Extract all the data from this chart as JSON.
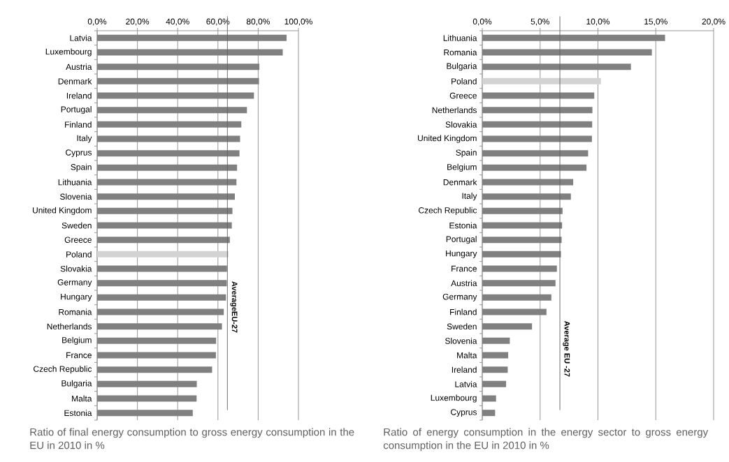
{
  "chart_data": [
    {
      "type": "bar",
      "orientation": "horizontal",
      "grid": "x",
      "categories": [
        "Latvia",
        "Luxembourg",
        "Austria",
        "Denmark",
        "Ireland",
        "Portugal",
        "Finland",
        "Italy",
        "Cyprus",
        "Spain",
        "Lithuania",
        "Slovenia",
        "United Kingdom",
        "Sweden",
        "Greece",
        "Poland",
        "Slovakia",
        "Germany",
        "Hungary",
        "Romania",
        "Netherlands",
        "Belgium",
        "France",
        "Czech Republic",
        "Bulgaria",
        "Malta",
        "Estonia"
      ],
      "values": [
        94.1,
        92.2,
        80.6,
        80.4,
        77.9,
        74.4,
        71.6,
        71.0,
        70.7,
        69.5,
        69.2,
        68.4,
        67.2,
        66.9,
        65.9,
        65.2,
        64.5,
        64.4,
        64.0,
        62.9,
        62.0,
        59.1,
        59.0,
        57.1,
        49.5,
        49.4,
        47.5
      ],
      "colors": [
        "#808080",
        "#808080",
        "#808080",
        "#808080",
        "#808080",
        "#808080",
        "#808080",
        "#808080",
        "#808080",
        "#808080",
        "#808080",
        "#808080",
        "#808080",
        "#808080",
        "#808080",
        "#d3d3d3",
        "#808080",
        "#808080",
        "#808080",
        "#808080",
        "#808080",
        "#808080",
        "#808080",
        "#808080",
        "#808080",
        "#808080",
        "#808080"
      ],
      "xlim": [
        0,
        100
      ],
      "xticks": [
        {
          "value": 0,
          "label": "0,0%"
        },
        {
          "value": 20,
          "label": "20,0%"
        },
        {
          "value": 40,
          "label": "40,0%"
        },
        {
          "value": 60,
          "label": "60,0%"
        },
        {
          "value": 80,
          "label": "80,0%"
        },
        {
          "value": 100,
          "label": "100,0%"
        }
      ],
      "ref_lines": [
        {
          "axis": "x",
          "value": 64.7,
          "label": "AverageEU-27",
          "color": "#606060"
        }
      ],
      "annotations": [
        "Ratio of final energy consumption to gross energy consumption in the EU in 2010 in %"
      ]
    },
    {
      "type": "bar",
      "orientation": "horizontal",
      "grid": "x",
      "categories": [
        "Lithuania",
        "Romania",
        "Bulgaria",
        "Poland",
        "Greece",
        "Netherlands",
        "Slovakia",
        "United Kingdom",
        "Spain",
        "Belgium",
        "Denmark",
        "Italy",
        "Czech Republic",
        "Estonia",
        "Portugal",
        "Hungary",
        "France",
        "Austria",
        "Germany",
        "Finland",
        "Sweden",
        "Slovenia",
        "Malta",
        "Ireland",
        "Latvia",
        "Luxembourg",
        "Cyprus"
      ],
      "values": [
        15.8,
        14.66,
        12.85,
        10.26,
        9.68,
        9.52,
        9.5,
        9.48,
        9.15,
        9.01,
        7.86,
        7.66,
        6.94,
        6.9,
        6.86,
        6.8,
        6.45,
        6.33,
        5.97,
        5.55,
        4.3,
        2.38,
        2.24,
        2.2,
        2.06,
        1.19,
        1.11
      ],
      "colors": [
        "#808080",
        "#808080",
        "#808080",
        "#d3d3d3",
        "#808080",
        "#808080",
        "#808080",
        "#808080",
        "#808080",
        "#808080",
        "#808080",
        "#808080",
        "#808080",
        "#808080",
        "#808080",
        "#808080",
        "#808080",
        "#808080",
        "#808080",
        "#808080",
        "#808080",
        "#808080",
        "#808080",
        "#808080",
        "#808080",
        "#808080",
        "#808080"
      ],
      "xlim": [
        0,
        20
      ],
      "xticks": [
        {
          "value": 0,
          "label": "0,0%"
        },
        {
          "value": 5,
          "label": "5,0%"
        },
        {
          "value": 10,
          "label": "10,0%"
        },
        {
          "value": 15,
          "label": "15,0%"
        },
        {
          "value": 20,
          "label": "20,0%"
        }
      ],
      "ref_lines": [
        {
          "axis": "x",
          "value": 6.71,
          "label": "Average EU -27",
          "color": "#606060"
        }
      ],
      "annotations": [
        "Ratio of energy consumption in the energy sector to gross energy consumption in the EU in 2010 in %"
      ]
    }
  ]
}
